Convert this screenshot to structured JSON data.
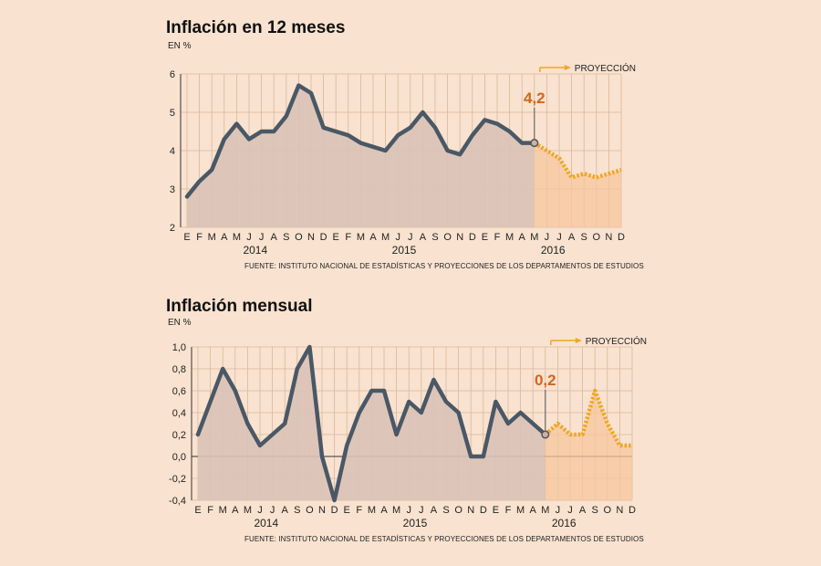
{
  "colors": {
    "background": "#f9e2cf",
    "line": "#4a5866",
    "area": "#d9c3b6",
    "projection": "#f0a623",
    "projection_area": "#f6c79c",
    "callout": "#d4651d",
    "grid": "#d8b89e"
  },
  "chart_data": [
    {
      "type": "area",
      "title": "Inflación en 12 meses",
      "unit": "EN %",
      "source": "FUENTE: INSTITUTO NACIONAL DE ESTADÍSTICAS Y PROYECCIONES DE LOS DEPARTAMENTOS DE ESTUDIOS",
      "months": [
        "E",
        "F",
        "M",
        "A",
        "M",
        "J",
        "J",
        "A",
        "S",
        "O",
        "N",
        "D",
        "E",
        "F",
        "M",
        "A",
        "M",
        "J",
        "J",
        "A",
        "S",
        "O",
        "N",
        "D",
        "E",
        "F",
        "M",
        "A",
        "M",
        "J",
        "J",
        "A",
        "S",
        "O",
        "N",
        "D"
      ],
      "years": [
        {
          "label": "2014",
          "center_index": 5.5
        },
        {
          "label": "2015",
          "center_index": 17.5
        },
        {
          "label": "2016",
          "center_index": 29.5
        }
      ],
      "ylim": [
        2,
        6
      ],
      "yticks": [
        2,
        3,
        4,
        5,
        6
      ],
      "ytick_labels": [
        "2",
        "3",
        "4",
        "5",
        "6"
      ],
      "actual": [
        2.8,
        3.2,
        3.5,
        4.3,
        4.7,
        4.3,
        4.5,
        4.5,
        4.9,
        5.7,
        5.5,
        4.6,
        4.5,
        4.4,
        4.2,
        4.1,
        4.0,
        4.4,
        4.6,
        5.0,
        4.6,
        4.0,
        3.9,
        4.4,
        4.8,
        4.7,
        4.5,
        4.2,
        4.2
      ],
      "projection_start_index": 28,
      "projection": [
        4.2,
        4.0,
        3.8,
        3.3,
        3.4,
        3.3,
        3.4,
        3.5
      ],
      "callout": {
        "label": "4,2",
        "index": 28,
        "value": 4.2
      },
      "projection_label": "PROYECCIÓN"
    },
    {
      "type": "area",
      "title": "Inflación mensual",
      "unit": "EN %",
      "source": "FUENTE: INSTITUTO NACIONAL DE ESTADÍSTICAS Y PROYECCIONES DE LOS DEPARTAMENTOS DE ESTUDIOS",
      "months": [
        "E",
        "F",
        "M",
        "A",
        "M",
        "J",
        "J",
        "A",
        "S",
        "O",
        "N",
        "D",
        "E",
        "F",
        "M",
        "A",
        "M",
        "J",
        "J",
        "A",
        "S",
        "O",
        "N",
        "D",
        "E",
        "F",
        "M",
        "A",
        "M",
        "J",
        "J",
        "A",
        "S",
        "O",
        "N",
        "D"
      ],
      "years": [
        {
          "label": "2014",
          "center_index": 5.5
        },
        {
          "label": "2015",
          "center_index": 17.5
        },
        {
          "label": "2016",
          "center_index": 29.5
        }
      ],
      "ylim": [
        -0.4,
        1.0
      ],
      "yticks": [
        -0.4,
        -0.2,
        0.0,
        0.2,
        0.4,
        0.6,
        0.8,
        1.0
      ],
      "ytick_labels": [
        "-0,4",
        "-0,2",
        "0,0",
        "0,2",
        "0,4",
        "0,6",
        "0,8",
        "1,0"
      ],
      "actual": [
        0.2,
        0.5,
        0.8,
        0.6,
        0.3,
        0.1,
        0.2,
        0.3,
        0.8,
        1.0,
        0.0,
        -0.4,
        0.1,
        0.4,
        0.6,
        0.6,
        0.2,
        0.5,
        0.4,
        0.7,
        0.5,
        0.4,
        0.0,
        0.0,
        0.5,
        0.3,
        0.4,
        0.3,
        0.2
      ],
      "projection_start_index": 28,
      "projection": [
        0.2,
        0.3,
        0.2,
        0.2,
        0.6,
        0.3,
        0.1,
        0.1
      ],
      "callout": {
        "label": "0,2",
        "index": 28,
        "value": 0.2
      },
      "projection_label": "PROYECCIÓN"
    }
  ]
}
